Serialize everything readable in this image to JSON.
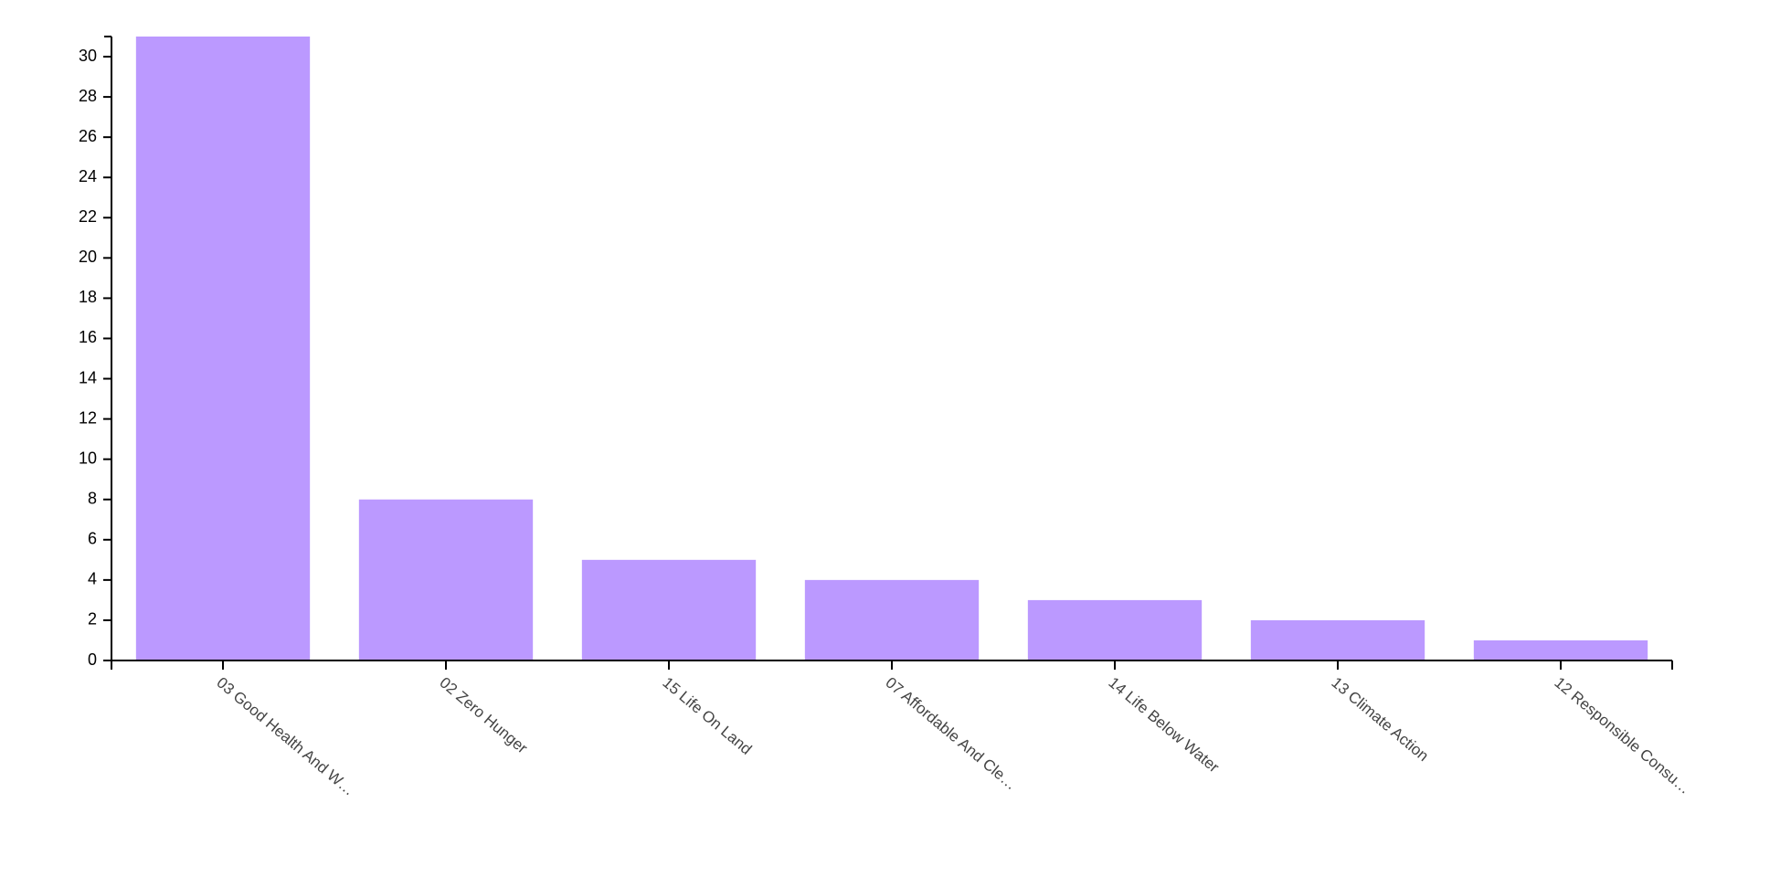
{
  "chart_data": {
    "type": "bar",
    "categories": [
      "03 Good Health And W…",
      "02 Zero Hunger",
      "15 Life On Land",
      "07 Affordable And Cle…",
      "14 Life Below Water",
      "13 Climate Action",
      "12 Responsible Consu…"
    ],
    "values": [
      31,
      8,
      5,
      4,
      3,
      2,
      1
    ],
    "color": "#bb99ff",
    "ylim": [
      0,
      31
    ],
    "yticks": [
      0,
      2,
      4,
      6,
      8,
      10,
      12,
      14,
      16,
      18,
      20,
      22,
      24,
      26,
      28,
      30
    ]
  }
}
